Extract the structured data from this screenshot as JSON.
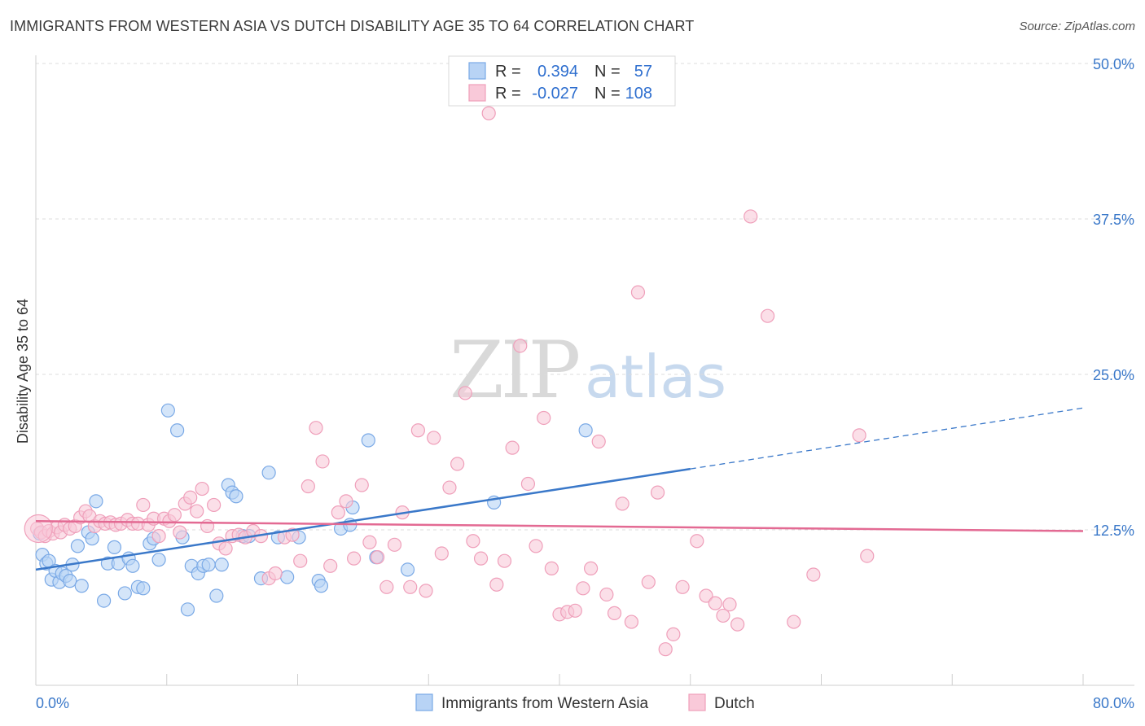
{
  "title": "IMMIGRANTS FROM WESTERN ASIA VS DUTCH DISABILITY AGE 35 TO 64 CORRELATION CHART",
  "source": "Source: ZipAtlas.com",
  "colors": {
    "blue": "#3a78c9",
    "blue_fill": "#b8d3f5",
    "blue_stroke": "#7aa9e6",
    "pink": "#e36a93",
    "pink_fill": "#f9c9d9",
    "pink_stroke": "#ef9fba",
    "grid": "#dcdcdc",
    "axis_label": "#3a78c9"
  },
  "legend": {
    "rows": [
      {
        "r_label": "R =",
        "r_value": "0.394",
        "n_label": "N =",
        "n_value": "57"
      },
      {
        "r_label": "R =",
        "r_value": "-0.027",
        "n_label": "N =",
        "n_value": "108"
      }
    ]
  },
  "bottom_legend": [
    "Immigrants from Western Asia",
    "Dutch"
  ],
  "chart_data": {
    "type": "scatter",
    "title": "IMMIGRANTS FROM WESTERN ASIA VS DUTCH DISABILITY AGE 35 TO 64 CORRELATION CHART",
    "xlabel": "",
    "ylabel": "Disability Age 35 to 64",
    "xlim": [
      0,
      80
    ],
    "ylim": [
      0,
      50
    ],
    "x_tick_labels": [
      "0.0%",
      "80.0%"
    ],
    "y_ticks": [
      12.5,
      25.0,
      37.5,
      50.0
    ],
    "y_tick_labels": [
      "12.5%",
      "25.0%",
      "37.5%",
      "50.0%"
    ],
    "grid": true,
    "legend_position": "top-center",
    "series": [
      {
        "name": "Immigrants from Western Asia",
        "color": "#3a78c9",
        "trend": {
          "x0": 0,
          "y0": 9.3,
          "x1": 50,
          "y1": 17.4,
          "dashed_to_x": 80,
          "dashed_to_y": 22.3
        },
        "points": [
          [
            0.3,
            12.2
          ],
          [
            0.5,
            10.5
          ],
          [
            0.8,
            9.8
          ],
          [
            1.0,
            10.0
          ],
          [
            1.2,
            8.5
          ],
          [
            1.5,
            9.2
          ],
          [
            1.8,
            8.3
          ],
          [
            2.0,
            9.0
          ],
          [
            2.3,
            8.8
          ],
          [
            2.6,
            8.4
          ],
          [
            2.8,
            9.7
          ],
          [
            3.2,
            11.2
          ],
          [
            3.5,
            8.0
          ],
          [
            4.0,
            12.3
          ],
          [
            4.3,
            11.8
          ],
          [
            4.6,
            14.8
          ],
          [
            5.2,
            6.8
          ],
          [
            5.5,
            9.8
          ],
          [
            6.0,
            11.1
          ],
          [
            6.3,
            9.8
          ],
          [
            6.8,
            7.4
          ],
          [
            7.1,
            10.2
          ],
          [
            7.4,
            9.6
          ],
          [
            7.8,
            7.9
          ],
          [
            8.2,
            7.8
          ],
          [
            8.7,
            11.4
          ],
          [
            9.0,
            11.8
          ],
          [
            9.4,
            10.1
          ],
          [
            10.1,
            22.1
          ],
          [
            10.8,
            20.5
          ],
          [
            11.2,
            11.9
          ],
          [
            11.6,
            6.1
          ],
          [
            11.9,
            9.6
          ],
          [
            12.4,
            9.0
          ],
          [
            12.8,
            9.6
          ],
          [
            13.2,
            9.7
          ],
          [
            13.8,
            7.2
          ],
          [
            14.2,
            9.7
          ],
          [
            14.7,
            16.1
          ],
          [
            15.0,
            15.5
          ],
          [
            15.3,
            15.2
          ],
          [
            15.8,
            12.0
          ],
          [
            16.3,
            12.0
          ],
          [
            17.2,
            8.6
          ],
          [
            17.8,
            17.1
          ],
          [
            18.5,
            11.9
          ],
          [
            19.2,
            8.7
          ],
          [
            20.1,
            11.9
          ],
          [
            21.6,
            8.4
          ],
          [
            21.8,
            8.0
          ],
          [
            23.3,
            12.6
          ],
          [
            24.2,
            14.3
          ],
          [
            25.4,
            19.7
          ],
          [
            24.0,
            12.9
          ],
          [
            26.0,
            10.3
          ],
          [
            28.4,
            9.3
          ],
          [
            35.0,
            14.7
          ],
          [
            42.0,
            20.5
          ]
        ]
      },
      {
        "name": "Dutch",
        "color": "#e36a93",
        "trend": {
          "x0": 0,
          "y0": 13.2,
          "x1": 80,
          "y1": 12.4
        },
        "points": [
          [
            0.1,
            12.6
          ],
          [
            0.4,
            12.3
          ],
          [
            0.7,
            12.0
          ],
          [
            1.0,
            12.4
          ],
          [
            1.3,
            12.2
          ],
          [
            1.6,
            12.7
          ],
          [
            1.9,
            12.3
          ],
          [
            2.2,
            12.9
          ],
          [
            2.6,
            12.6
          ],
          [
            3.0,
            12.8
          ],
          [
            3.4,
            13.5
          ],
          [
            3.8,
            14.0
          ],
          [
            4.1,
            13.6
          ],
          [
            4.5,
            12.8
          ],
          [
            4.9,
            13.2
          ],
          [
            5.3,
            13.0
          ],
          [
            5.7,
            13.1
          ],
          [
            6.1,
            12.9
          ],
          [
            6.5,
            13.0
          ],
          [
            7.0,
            13.3
          ],
          [
            7.4,
            13.0
          ],
          [
            7.8,
            13.0
          ],
          [
            8.2,
            14.5
          ],
          [
            8.6,
            12.9
          ],
          [
            9.0,
            13.4
          ],
          [
            9.4,
            12.0
          ],
          [
            9.8,
            13.4
          ],
          [
            10.2,
            13.2
          ],
          [
            10.6,
            13.7
          ],
          [
            11.0,
            12.3
          ],
          [
            11.4,
            14.6
          ],
          [
            11.8,
            15.1
          ],
          [
            12.3,
            14.0
          ],
          [
            12.7,
            15.8
          ],
          [
            13.1,
            12.8
          ],
          [
            13.6,
            14.5
          ],
          [
            14.0,
            11.4
          ],
          [
            14.5,
            11.0
          ],
          [
            15.0,
            12.0
          ],
          [
            15.5,
            12.1
          ],
          [
            16.0,
            11.9
          ],
          [
            16.6,
            12.4
          ],
          [
            17.2,
            12.0
          ],
          [
            17.8,
            8.6
          ],
          [
            18.3,
            9.0
          ],
          [
            19.0,
            11.9
          ],
          [
            19.6,
            12.1
          ],
          [
            20.2,
            10.0
          ],
          [
            20.8,
            16.0
          ],
          [
            21.4,
            20.7
          ],
          [
            21.9,
            18.0
          ],
          [
            22.5,
            9.6
          ],
          [
            23.1,
            13.9
          ],
          [
            23.7,
            14.8
          ],
          [
            24.3,
            10.2
          ],
          [
            24.9,
            16.1
          ],
          [
            25.5,
            11.5
          ],
          [
            26.1,
            10.3
          ],
          [
            26.8,
            7.9
          ],
          [
            27.4,
            11.3
          ],
          [
            28.0,
            13.9
          ],
          [
            28.6,
            7.9
          ],
          [
            29.2,
            20.5
          ],
          [
            29.8,
            7.6
          ],
          [
            30.4,
            19.9
          ],
          [
            31.0,
            10.6
          ],
          [
            31.6,
            15.9
          ],
          [
            32.2,
            17.8
          ],
          [
            32.8,
            23.5
          ],
          [
            33.4,
            11.6
          ],
          [
            34.0,
            10.2
          ],
          [
            34.6,
            46.0
          ],
          [
            35.2,
            8.1
          ],
          [
            35.8,
            10.0
          ],
          [
            36.4,
            19.1
          ],
          [
            37.0,
            27.3
          ],
          [
            37.6,
            16.2
          ],
          [
            38.2,
            11.2
          ],
          [
            38.8,
            21.5
          ],
          [
            39.4,
            9.4
          ],
          [
            40.0,
            5.7
          ],
          [
            40.6,
            5.9
          ],
          [
            41.2,
            6.0
          ],
          [
            41.8,
            7.8
          ],
          [
            42.4,
            9.4
          ],
          [
            43.0,
            19.6
          ],
          [
            43.6,
            7.3
          ],
          [
            44.2,
            5.8
          ],
          [
            44.8,
            14.6
          ],
          [
            45.5,
            5.1
          ],
          [
            46.0,
            31.6
          ],
          [
            46.8,
            8.3
          ],
          [
            47.5,
            15.5
          ],
          [
            48.1,
            2.9
          ],
          [
            48.7,
            4.1
          ],
          [
            49.4,
            7.9
          ],
          [
            50.5,
            11.6
          ],
          [
            51.2,
            7.2
          ],
          [
            51.9,
            6.6
          ],
          [
            52.5,
            5.6
          ],
          [
            53.0,
            6.5
          ],
          [
            53.6,
            4.9
          ],
          [
            54.6,
            37.7
          ],
          [
            55.9,
            29.7
          ],
          [
            57.9,
            5.1
          ],
          [
            59.4,
            8.9
          ],
          [
            62.9,
            20.1
          ],
          [
            63.5,
            10.4
          ]
        ]
      }
    ],
    "big_points": [
      {
        "series": "Dutch",
        "x": 0.2,
        "y": 12.6
      }
    ]
  }
}
